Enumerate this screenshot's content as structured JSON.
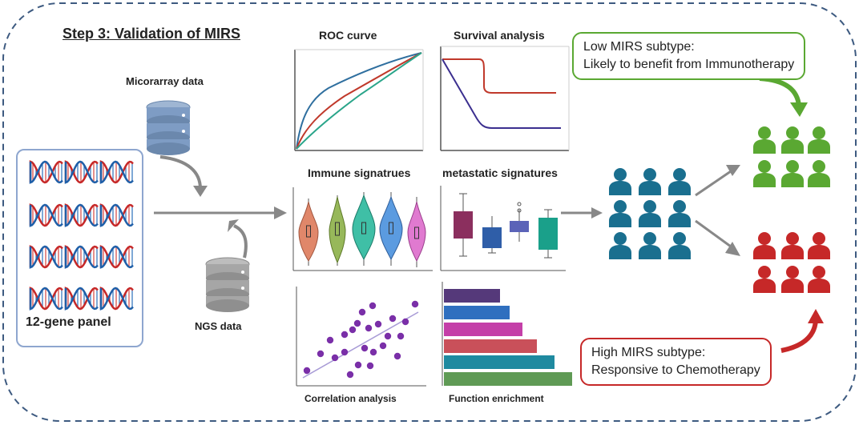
{
  "title": "Step 3: Validation of MIRS",
  "gene_panel": {
    "label": "12-gene panel",
    "dna_count": 12
  },
  "data_sources": {
    "microarray": "Micorarray data",
    "ngs": "NGS data"
  },
  "panels": {
    "roc": "ROC curve",
    "survival": "Survival analysis",
    "immune": "Immune signatrues",
    "metastatic": "metastatic signatures",
    "correlation": "Correlation analysis",
    "function": "Function enrichment"
  },
  "outcomes": {
    "low": {
      "line1": "Low MIRS subtype:",
      "line2": "Likely to benefit from Immunotherapy",
      "color": "#5aa832"
    },
    "high": {
      "line1": "High MIRS subtype:",
      "line2": "Responsive to Chemotherapy",
      "color": "#c62828"
    }
  },
  "colors": {
    "border_dash": "#3d5a80",
    "patient_blue": "#1a6f8f",
    "patient_green": "#5aa832",
    "patient_red": "#c62828",
    "arrow_gray": "#777777",
    "violin": [
      "#e0876a",
      "#97b85a",
      "#3fbfa6",
      "#5b9be0",
      "#e07ad0"
    ],
    "metastatic": [
      "#8b2f5e",
      "#2f5ea8",
      "#5b63b8",
      "#1aa08a"
    ],
    "function": [
      "#55397a",
      "#2f6fbf",
      "#c43fa8",
      "#c9505a",
      "#1f8aa0",
      "#5f9a55"
    ],
    "roc": [
      "#2f6f9f",
      "#c0392b",
      "#2aa58a"
    ],
    "survival": [
      "#c0392b",
      "#3b2f8f"
    ],
    "scatter": "#7a2fa8"
  }
}
